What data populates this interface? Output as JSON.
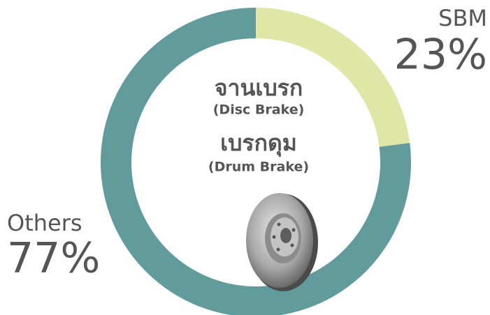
{
  "chart_data": {
    "type": "pie",
    "donut": true,
    "categories": [
      "SBM",
      "Others"
    ],
    "values": [
      23,
      77
    ],
    "value_labels": [
      "23%",
      "77%"
    ],
    "colors": [
      "#dfe6a6",
      "#629b9c"
    ],
    "annotations": [
      "จานเบรก",
      "(Disc Brake)",
      "เบรกดุม",
      "(Drum Brake)"
    ]
  }
}
